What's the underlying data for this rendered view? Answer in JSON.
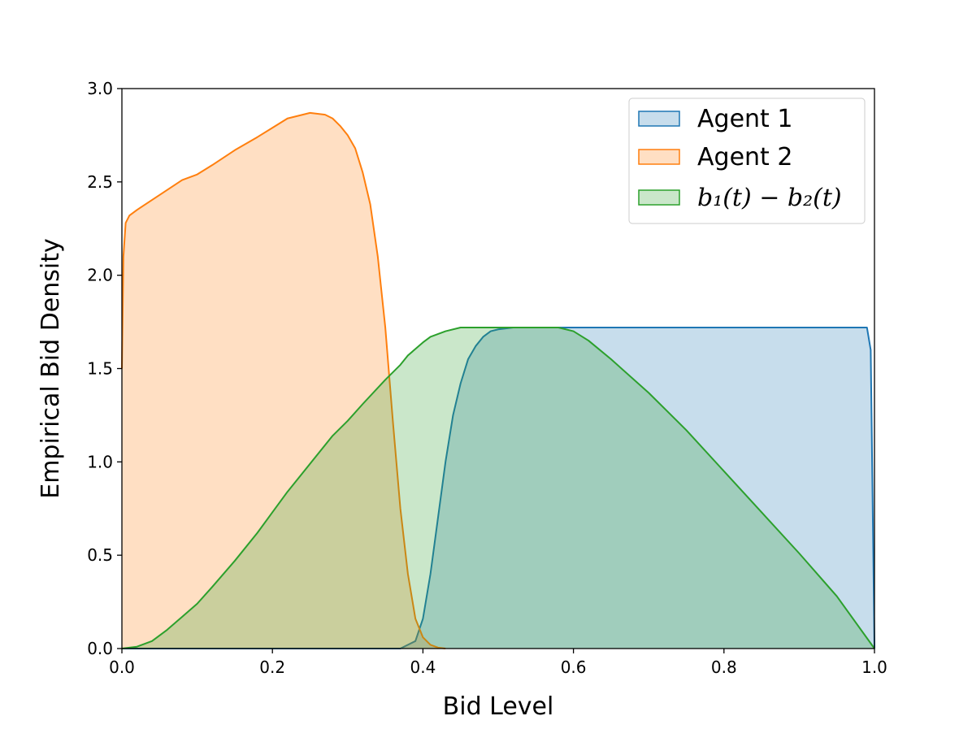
{
  "chart_data": {
    "type": "area",
    "xlabel": "Bid Level",
    "ylabel": "Empirical Bid Density",
    "xlim": [
      0.0,
      1.0
    ],
    "ylim": [
      0.0,
      3.0
    ],
    "xticks": [
      "0.0",
      "0.2",
      "0.4",
      "0.6",
      "0.8",
      "1.0"
    ],
    "yticks": [
      "0.0",
      "0.5",
      "1.0",
      "1.5",
      "2.0",
      "2.5",
      "3.0"
    ],
    "grid": false,
    "legend_position": "top-right",
    "series": [
      {
        "name": "Agent 1",
        "color": "#1f77b4",
        "x": [
          0.0,
          0.37,
          0.39,
          0.4,
          0.41,
          0.42,
          0.43,
          0.44,
          0.45,
          0.46,
          0.47,
          0.48,
          0.49,
          0.5,
          0.52,
          0.55,
          0.58,
          0.6,
          0.65,
          0.7,
          0.75,
          0.8,
          0.85,
          0.9,
          0.95,
          0.99,
          0.995,
          1.0
        ],
        "y": [
          0.0,
          0.0,
          0.04,
          0.16,
          0.4,
          0.7,
          1.0,
          1.25,
          1.42,
          1.55,
          1.62,
          1.67,
          1.7,
          1.71,
          1.72,
          1.72,
          1.72,
          1.72,
          1.72,
          1.72,
          1.72,
          1.72,
          1.72,
          1.72,
          1.72,
          1.72,
          1.6,
          0.0
        ]
      },
      {
        "name": "Agent 2",
        "color": "#ff7f0e",
        "x": [
          0.0,
          0.002,
          0.005,
          0.01,
          0.02,
          0.05,
          0.08,
          0.1,
          0.12,
          0.15,
          0.18,
          0.2,
          0.22,
          0.25,
          0.27,
          0.28,
          0.29,
          0.3,
          0.31,
          0.32,
          0.33,
          0.34,
          0.35,
          0.36,
          0.37,
          0.38,
          0.39,
          0.4,
          0.41,
          0.42,
          0.43
        ],
        "y": [
          1.5,
          2.1,
          2.28,
          2.32,
          2.35,
          2.43,
          2.51,
          2.54,
          2.59,
          2.67,
          2.74,
          2.79,
          2.84,
          2.87,
          2.86,
          2.84,
          2.8,
          2.75,
          2.68,
          2.55,
          2.38,
          2.1,
          1.72,
          1.22,
          0.75,
          0.4,
          0.16,
          0.06,
          0.02,
          0.005,
          0.0
        ]
      },
      {
        "name": "b₁(t) − b₂(t)",
        "color": "#2ca02c",
        "x": [
          0.0,
          0.02,
          0.04,
          0.06,
          0.08,
          0.1,
          0.12,
          0.15,
          0.18,
          0.2,
          0.22,
          0.25,
          0.28,
          0.3,
          0.32,
          0.35,
          0.37,
          0.38,
          0.4,
          0.41,
          0.43,
          0.45,
          0.48,
          0.5,
          0.55,
          0.58,
          0.6,
          0.62,
          0.65,
          0.7,
          0.75,
          0.8,
          0.85,
          0.9,
          0.95,
          1.0
        ],
        "y": [
          0.0,
          0.01,
          0.04,
          0.1,
          0.17,
          0.24,
          0.33,
          0.47,
          0.62,
          0.73,
          0.84,
          0.99,
          1.14,
          1.22,
          1.31,
          1.44,
          1.52,
          1.57,
          1.64,
          1.67,
          1.7,
          1.72,
          1.72,
          1.72,
          1.72,
          1.72,
          1.7,
          1.65,
          1.55,
          1.37,
          1.17,
          0.95,
          0.73,
          0.51,
          0.28,
          0.0
        ]
      }
    ]
  }
}
